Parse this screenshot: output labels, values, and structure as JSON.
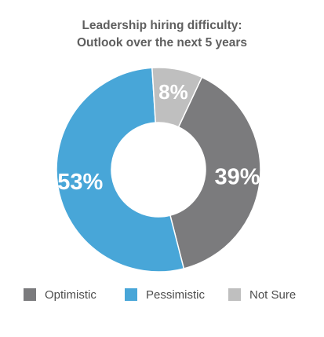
{
  "chart_data": {
    "type": "pie",
    "title_lines": [
      "Leadership hiring difficulty:",
      "Outlook over the next 5 years"
    ],
    "series": [
      {
        "name": "Optimistic",
        "value": 39,
        "label": "39%",
        "color": "#7b7b7d"
      },
      {
        "name": "Pessimistic",
        "value": 53,
        "label": "53%",
        "color": "#48a6d8"
      },
      {
        "name": "Not Sure",
        "value": 8,
        "label": "8%",
        "color": "#bfbfbf"
      }
    ],
    "legend": [
      "Optimistic",
      "Pessimistic",
      "Not Sure"
    ],
    "legend_position": "bottom",
    "donut": true
  }
}
